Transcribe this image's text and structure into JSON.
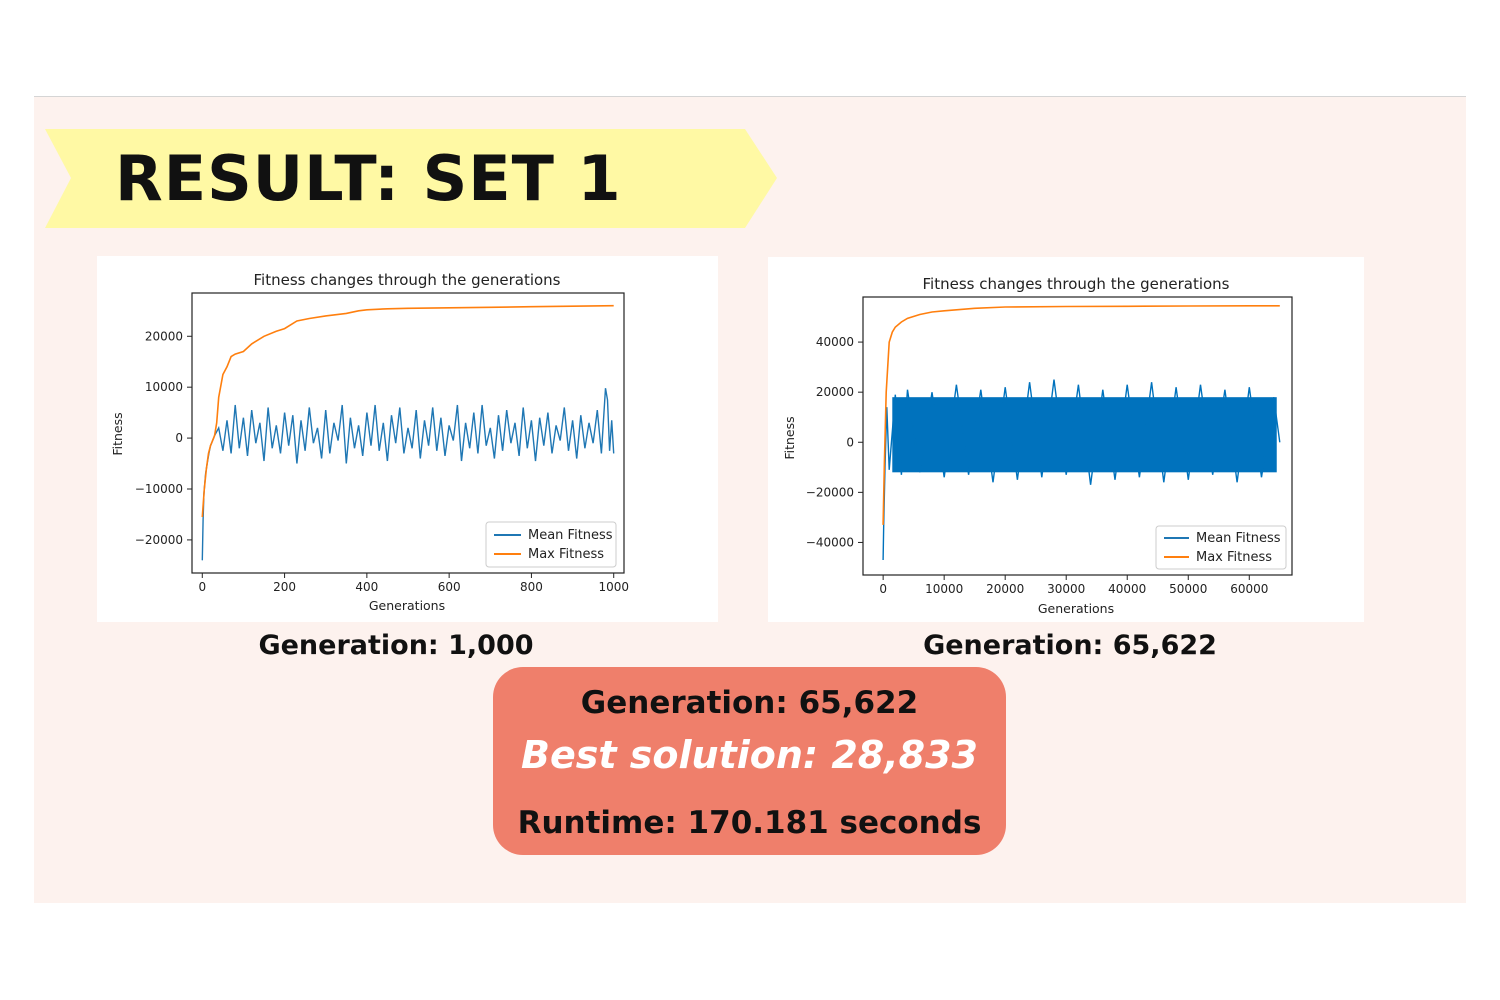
{
  "slide": {
    "title": "RESULT: SET 1",
    "banner_color": "#fff9a4",
    "background_color": "#fdf2ee"
  },
  "captions": {
    "left": "Generation: 1,000",
    "right": "Generation: 65,622"
  },
  "summary": {
    "generation": "Generation: 65,622",
    "best_solution": "Best solution: 28,833",
    "runtime": "Runtime: 170.181 seconds",
    "box_color": "#ef7f6b"
  },
  "chart_data": [
    {
      "type": "line",
      "title": "Fitness changes through the generations",
      "xlabel": "Generations",
      "ylabel": "Fitness",
      "xlim": [
        -25,
        1025
      ],
      "ylim": [
        -26500,
        28500
      ],
      "xticks": [
        0,
        200,
        400,
        600,
        800,
        1000
      ],
      "yticks": [
        -20000,
        -10000,
        0,
        10000,
        20000
      ],
      "xtick_labels": [
        "0",
        "200",
        "400",
        "600",
        "800",
        "1000"
      ],
      "ytick_labels": [
        "−20000",
        "−10000",
        "0",
        "10000",
        "20000"
      ],
      "grid": false,
      "legend_position": "lower-right",
      "series": [
        {
          "name": "Mean Fitness",
          "color": "#1f77b4",
          "x": [
            0,
            2,
            4,
            8,
            12,
            16,
            20,
            25,
            30,
            40,
            50,
            60,
            70,
            80,
            90,
            100,
            110,
            120,
            130,
            140,
            150,
            160,
            170,
            180,
            190,
            200,
            210,
            220,
            230,
            240,
            250,
            260,
            270,
            280,
            290,
            300,
            310,
            320,
            330,
            340,
            350,
            360,
            370,
            380,
            390,
            400,
            410,
            420,
            430,
            440,
            450,
            460,
            470,
            480,
            490,
            500,
            510,
            520,
            530,
            540,
            550,
            560,
            570,
            580,
            590,
            600,
            610,
            620,
            630,
            640,
            650,
            660,
            670,
            680,
            690,
            700,
            710,
            720,
            730,
            740,
            750,
            760,
            770,
            780,
            790,
            800,
            810,
            820,
            830,
            840,
            850,
            860,
            870,
            880,
            890,
            900,
            910,
            920,
            930,
            940,
            950,
            960,
            970,
            980,
            985,
            990,
            995,
            1000
          ],
          "values": [
            -24000,
            -16000,
            -11000,
            -7000,
            -5000,
            -3000,
            -1500,
            -500,
            500,
            2000,
            -2500,
            3500,
            -3000,
            6500,
            -2000,
            4000,
            -3500,
            5500,
            -1000,
            3000,
            -4500,
            6000,
            -2000,
            2500,
            -3000,
            5000,
            -1500,
            4500,
            -5000,
            3500,
            -2500,
            6000,
            -1000,
            2000,
            -4000,
            5500,
            -3000,
            3000,
            -500,
            6500,
            -5000,
            4000,
            -2000,
            2500,
            -3500,
            5000,
            -1500,
            6500,
            -2500,
            3000,
            -4500,
            4500,
            -1000,
            6000,
            -3000,
            2000,
            -2000,
            5500,
            -4000,
            3500,
            -1500,
            6000,
            -2500,
            4000,
            -3500,
            2500,
            -500,
            6500,
            -4500,
            3000,
            -2000,
            5000,
            -3000,
            6500,
            -1500,
            2000,
            -4000,
            4500,
            -2500,
            5500,
            -1000,
            3000,
            -3500,
            6000,
            -2000,
            3500,
            -4500,
            4000,
            -1500,
            5000,
            -3000,
            2500,
            -500,
            6000,
            -2500,
            3500,
            -4000,
            4500,
            -2000,
            3000,
            -1000,
            5500,
            -3000,
            9800,
            7500,
            -2500,
            3500,
            -3000
          ]
        },
        {
          "name": "Max Fitness",
          "color": "#ff7f0e",
          "x": [
            0,
            5,
            10,
            15,
            20,
            25,
            30,
            35,
            40,
            50,
            60,
            70,
            80,
            100,
            120,
            150,
            180,
            200,
            230,
            260,
            300,
            350,
            380,
            400,
            450,
            500,
            600,
            700,
            800,
            900,
            1000
          ],
          "values": [
            -15500,
            -10000,
            -6000,
            -3000,
            -1500,
            -500,
            500,
            3000,
            8000,
            12500,
            14000,
            16000,
            16500,
            17000,
            18500,
            20000,
            21000,
            21500,
            23000,
            23500,
            24000,
            24500,
            25000,
            25200,
            25400,
            25500,
            25600,
            25700,
            25800,
            25900,
            26000
          ]
        }
      ]
    },
    {
      "type": "line",
      "title": "Fitness changes through the generations",
      "xlabel": "Generations",
      "ylabel": "Fitness",
      "xlim": [
        -3300,
        67000
      ],
      "ylim": [
        -53000,
        58000
      ],
      "xticks": [
        0,
        10000,
        20000,
        30000,
        40000,
        50000,
        60000
      ],
      "yticks": [
        -40000,
        -20000,
        0,
        20000,
        40000
      ],
      "xtick_labels": [
        "0",
        "10000",
        "20000",
        "30000",
        "40000",
        "50000",
        "60000"
      ],
      "ytick_labels": [
        "−40000",
        "−20000",
        "0",
        "20000",
        "40000"
      ],
      "grid": false,
      "legend_position": "lower-right",
      "series": [
        {
          "name": "Mean Fitness",
          "color": "#0072bd",
          "band_low": -12000,
          "band_high": 18000,
          "x": [
            0,
            100,
            300,
            600,
            1000,
            2000,
            3000,
            4000,
            6000,
            8000,
            10000,
            12000,
            14000,
            16000,
            18000,
            20000,
            22000,
            24000,
            26000,
            28000,
            30000,
            32000,
            34000,
            36000,
            38000,
            40000,
            42000,
            44000,
            46000,
            48000,
            50000,
            52000,
            54000,
            56000,
            58000,
            60000,
            62000,
            64000,
            65000
          ],
          "values": [
            -47000,
            -33000,
            -10000,
            14000,
            -11000,
            19000,
            -13000,
            21000,
            -12000,
            20000,
            -14000,
            23000,
            -13000,
            21000,
            -16000,
            22000,
            -15000,
            24000,
            -14000,
            25000,
            -13000,
            23000,
            -17000,
            21000,
            -15000,
            23000,
            -14000,
            24000,
            -16000,
            22000,
            -15000,
            23000,
            -13000,
            21000,
            -16000,
            22000,
            -14000,
            18000,
            0
          ]
        },
        {
          "name": "Max Fitness",
          "color": "#ff7f0e",
          "x": [
            0,
            200,
            500,
            1000,
            1500,
            2000,
            3000,
            4000,
            6000,
            8000,
            10000,
            15000,
            20000,
            30000,
            40000,
            50000,
            60000,
            65000
          ],
          "values": [
            -33000,
            -8000,
            20000,
            40000,
            44000,
            46000,
            48000,
            49500,
            51000,
            52000,
            52500,
            53500,
            54000,
            54200,
            54300,
            54400,
            54500,
            54500
          ]
        }
      ]
    }
  ]
}
